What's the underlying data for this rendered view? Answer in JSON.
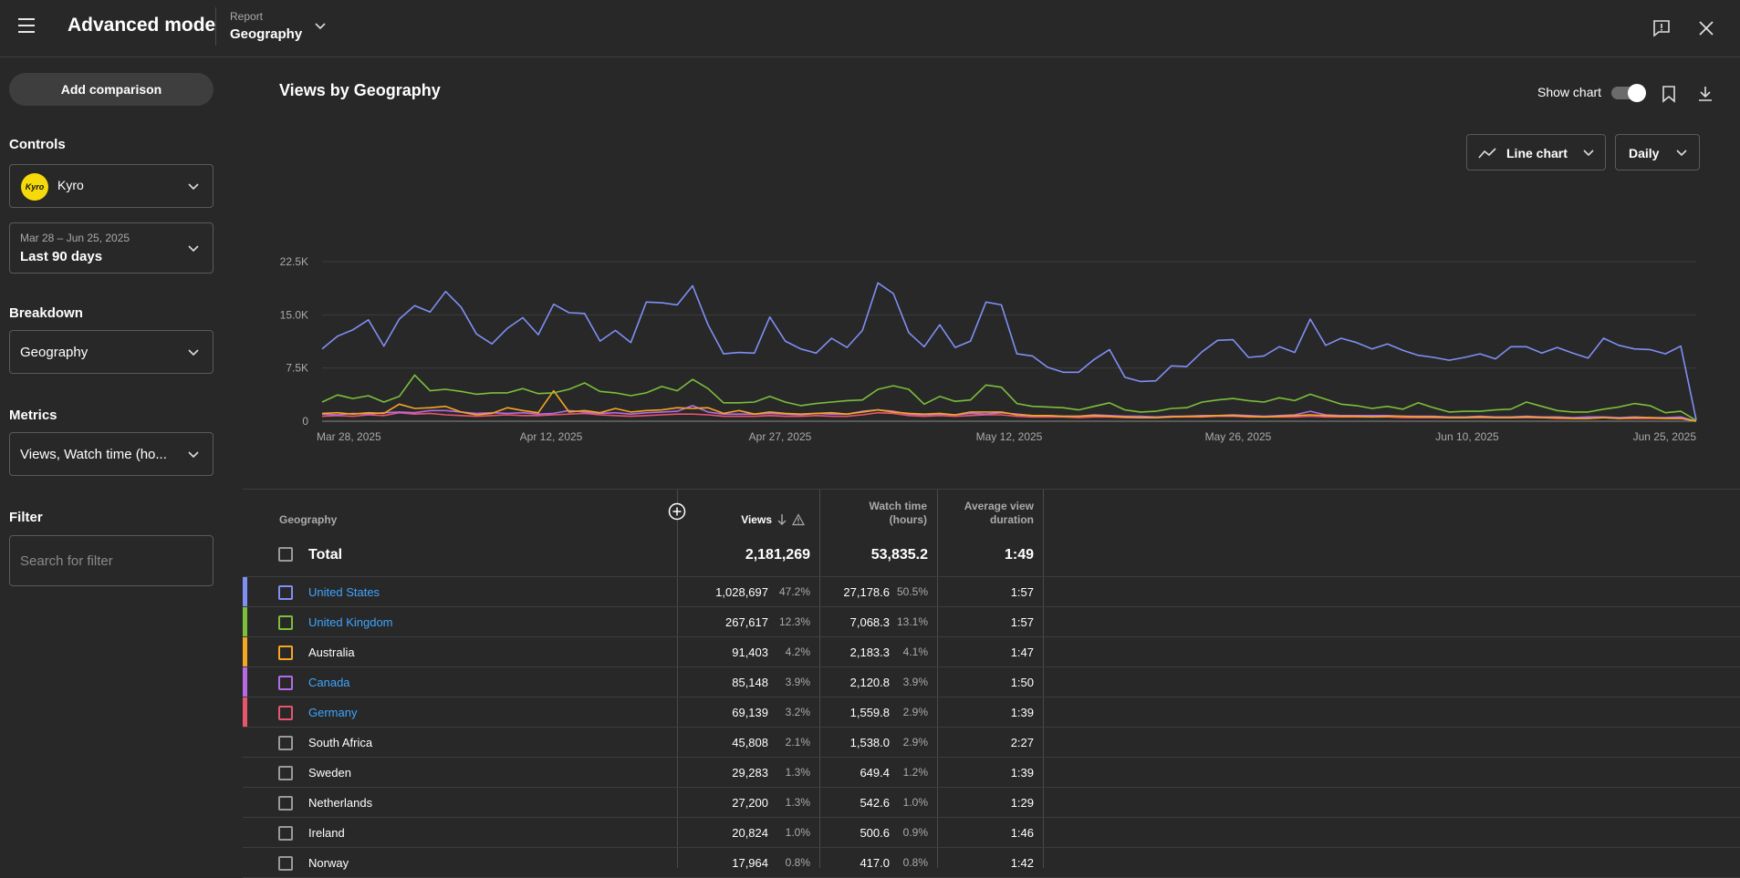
{
  "app": {
    "title": "Advanced mode",
    "report_label": "Report",
    "report_value": "Geography"
  },
  "sidebar": {
    "add_comparison": "Add comparison",
    "controls_title": "Controls",
    "channel": "Kyro",
    "avatar_text": "Kyro",
    "date_range": "Mar 28 – Jun 25, 2025",
    "date_preset": "Last 90 days",
    "breakdown_title": "Breakdown",
    "breakdown_value": "Geography",
    "metrics_title": "Metrics",
    "metrics_value": "Views, Watch time (ho...",
    "filter_title": "Filter",
    "filter_placeholder": "Search for filter"
  },
  "main": {
    "title": "Views by Geography",
    "show_chart": "Show chart",
    "chart_type": "Line chart",
    "granularity": "Daily"
  },
  "chart_data": {
    "type": "line",
    "x_labels": [
      "Mar 28, 2025",
      "Apr 12, 2025",
      "Apr 27, 2025",
      "May 12, 2025",
      "May 26, 2025",
      "Jun 10, 2025",
      "Jun 25, 2025"
    ],
    "y_ticks": [
      "0",
      "7.5K",
      "15.0K",
      "22.5K"
    ],
    "ylim": [
      0,
      22500
    ],
    "colors": {
      "US": "#7f8ff4",
      "UK": "#7bbf3a",
      "AU": "#f5a623",
      "CA": "#b56be8",
      "DE": "#e8566b",
      "Other": "#cccccc"
    },
    "series": [
      {
        "key": "US",
        "values": [
          10200,
          12000,
          12900,
          14300,
          10600,
          14400,
          16300,
          15400,
          18300,
          16100,
          12300,
          10900,
          13100,
          14600,
          12200,
          16500,
          15300,
          15200,
          11300,
          12800,
          11100,
          16800,
          16700,
          16400,
          19100,
          13600,
          9500,
          9700,
          9600,
          14700,
          11300,
          10200,
          9600,
          11700,
          10400,
          12800,
          19500,
          18000,
          12500,
          10500,
          13600,
          10400,
          11300,
          16800,
          16400,
          9500,
          9200,
          7600,
          6900,
          6900,
          8700,
          10100,
          6200,
          5600,
          5700,
          7800,
          7700,
          9800,
          11400,
          11500,
          9000,
          9200,
          10500,
          9700,
          14400,
          10700,
          11700,
          11100,
          10200,
          10900,
          10000,
          9300,
          9000,
          8600,
          9000,
          9500,
          8800,
          10500,
          10500,
          9600,
          10400,
          9600,
          8900,
          11700,
          10700,
          10200,
          10100,
          9500,
          10600,
          200
        ]
      },
      {
        "key": "UK",
        "values": [
          2700,
          3700,
          3200,
          3600,
          2700,
          3500,
          6500,
          4300,
          4500,
          4200,
          3800,
          4000,
          4000,
          4600,
          3900,
          4000,
          4500,
          5400,
          4200,
          4000,
          3600,
          4000,
          4900,
          4300,
          5900,
          4600,
          2600,
          2600,
          2700,
          3500,
          2700,
          2200,
          2500,
          2700,
          2900,
          3000,
          4500,
          5000,
          4500,
          2400,
          3500,
          2800,
          3000,
          5100,
          4800,
          2500,
          2100,
          2000,
          1900,
          1600,
          2100,
          2600,
          1600,
          1300,
          1400,
          1800,
          1900,
          2700,
          3000,
          3200,
          2900,
          2700,
          3300,
          2900,
          3800,
          3100,
          2400,
          2200,
          1800,
          2100,
          1700,
          2600,
          1900,
          1300,
          1400,
          1400,
          1600,
          1700,
          2700,
          2100,
          1500,
          1300,
          1300,
          1700,
          2000,
          2500,
          2200,
          1200,
          1400,
          100
        ]
      },
      {
        "key": "AU",
        "values": [
          1100,
          1200,
          1000,
          1200,
          1100,
          2400,
          1800,
          1900,
          2100,
          1300,
          900,
          1100,
          1900,
          1500,
          1200,
          4300,
          1300,
          1500,
          1200,
          1800,
          1300,
          1500,
          1600,
          1900,
          1800,
          1900,
          1100,
          1500,
          1000,
          1300,
          1100,
          1000,
          1100,
          1200,
          1000,
          1300,
          1600,
          1300,
          1100,
          1000,
          1100,
          900,
          1300,
          1300,
          1300,
          900,
          800,
          800,
          700,
          700,
          800,
          700,
          600,
          500,
          500,
          600,
          700,
          700,
          800,
          800,
          700,
          600,
          700,
          800,
          900,
          800,
          700,
          700,
          600,
          700,
          700,
          600,
          600,
          500,
          500,
          600,
          500,
          500,
          600,
          500,
          500,
          400,
          400,
          500,
          400,
          500,
          500,
          400,
          400,
          0
        ]
      },
      {
        "key": "CA",
        "values": [
          1000,
          900,
          1100,
          1000,
          1200,
          1300,
          1200,
          1500,
          1500,
          1300,
          1100,
          1200,
          1100,
          1200,
          1000,
          1100,
          1500,
          1300,
          1100,
          1200,
          1000,
          1200,
          1300,
          1400,
          2200,
          1300,
          1000,
          1000,
          1000,
          1100,
          1000,
          900,
          1100,
          1000,
          1000,
          1400,
          1600,
          1400,
          1000,
          900,
          1000,
          900,
          1100,
          1000,
          1200,
          1000,
          800,
          800,
          700,
          700,
          900,
          800,
          700,
          700,
          600,
          700,
          700,
          800,
          800,
          900,
          800,
          700,
          800,
          900,
          1400,
          900,
          800,
          800,
          800,
          800,
          700,
          700,
          700,
          600,
          600,
          700,
          600,
          600,
          700,
          600,
          600,
          500,
          600,
          600,
          500,
          600,
          500,
          500,
          600,
          0
        ]
      },
      {
        "key": "DE",
        "values": [
          700,
          800,
          700,
          900,
          800,
          1200,
          1000,
          1100,
          900,
          800,
          700,
          800,
          900,
          800,
          800,
          900,
          1000,
          1100,
          900,
          800,
          700,
          800,
          900,
          1000,
          1000,
          900,
          700,
          700,
          700,
          800,
          700,
          700,
          800,
          700,
          700,
          900,
          1200,
          1100,
          800,
          700,
          800,
          700,
          800,
          900,
          900,
          700,
          600,
          600,
          600,
          500,
          600,
          600,
          500,
          500,
          500,
          600,
          600,
          600,
          700,
          700,
          600,
          600,
          600,
          600,
          700,
          600,
          600,
          600,
          600,
          600,
          500,
          500,
          500,
          500,
          500,
          500,
          500,
          500,
          500,
          500,
          400,
          400,
          400,
          500,
          400,
          400,
          400,
          400,
          400,
          0
        ]
      }
    ]
  },
  "table": {
    "columns": {
      "geo": "Geography",
      "views": "Views",
      "watch_l1": "Watch time",
      "watch_l2": "(hours)",
      "avd_l1": "Average view",
      "avd_l2": "duration"
    },
    "total": {
      "label": "Total",
      "views": "2,181,269",
      "watch": "53,835.2",
      "avd": "1:49"
    },
    "rows": [
      {
        "name": "United States",
        "views": "1,028,697",
        "views_pct": "47.2%",
        "watch": "27,178.6",
        "watch_pct": "50.5%",
        "avd": "1:57",
        "color": "#7f8ff4",
        "link": true
      },
      {
        "name": "United Kingdom",
        "views": "267,617",
        "views_pct": "12.3%",
        "watch": "7,068.3",
        "watch_pct": "13.1%",
        "avd": "1:57",
        "color": "#7bbf3a",
        "link": true
      },
      {
        "name": "Australia",
        "views": "91,403",
        "views_pct": "4.2%",
        "watch": "2,183.3",
        "watch_pct": "4.1%",
        "avd": "1:47",
        "color": "#f5a623",
        "link": false
      },
      {
        "name": "Canada",
        "views": "85,148",
        "views_pct": "3.9%",
        "watch": "2,120.8",
        "watch_pct": "3.9%",
        "avd": "1:50",
        "color": "#b56be8",
        "link": true
      },
      {
        "name": "Germany",
        "views": "69,139",
        "views_pct": "3.2%",
        "watch": "1,559.8",
        "watch_pct": "2.9%",
        "avd": "1:39",
        "color": "#e8566b",
        "link": true
      },
      {
        "name": "South Africa",
        "views": "45,808",
        "views_pct": "2.1%",
        "watch": "1,538.0",
        "watch_pct": "2.9%",
        "avd": "2:27",
        "color": "",
        "link": false
      },
      {
        "name": "Sweden",
        "views": "29,283",
        "views_pct": "1.3%",
        "watch": "649.4",
        "watch_pct": "1.2%",
        "avd": "1:39",
        "color": "",
        "link": false
      },
      {
        "name": "Netherlands",
        "views": "27,200",
        "views_pct": "1.3%",
        "watch": "542.6",
        "watch_pct": "1.0%",
        "avd": "1:29",
        "color": "",
        "link": false
      },
      {
        "name": "Ireland",
        "views": "20,824",
        "views_pct": "1.0%",
        "watch": "500.6",
        "watch_pct": "0.9%",
        "avd": "1:46",
        "color": "",
        "link": false
      },
      {
        "name": "Norway",
        "views": "17,964",
        "views_pct": "0.8%",
        "watch": "417.0",
        "watch_pct": "0.8%",
        "avd": "1:42",
        "color": "",
        "link": false
      }
    ]
  }
}
